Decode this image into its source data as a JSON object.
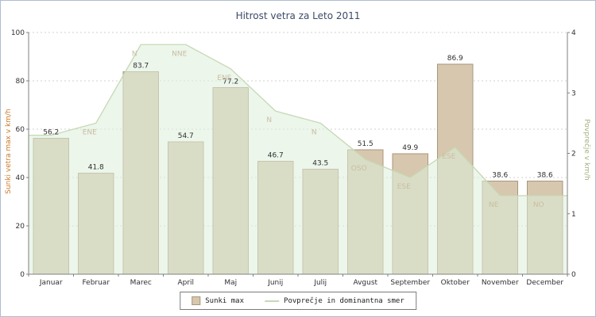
{
  "window": {
    "title": "Hitrost vetra za Leto 2011"
  },
  "chart_data": {
    "type": "bar",
    "title": "Hitrost vetra za Leto 2011",
    "categories": [
      "Januar",
      "Februar",
      "Marec",
      "April",
      "Maj",
      "Junij",
      "Julij",
      "Avgust",
      "September",
      "Oktober",
      "November",
      "December"
    ],
    "series": [
      {
        "name": "Sunki max",
        "type": "bar",
        "axis": "left",
        "values": [
          56.2,
          41.8,
          83.7,
          54.7,
          77.2,
          46.7,
          43.5,
          51.5,
          49.9,
          86.9,
          38.6,
          38.6
        ]
      },
      {
        "name": "Povprečje in dominantna smer",
        "type": "area",
        "axis": "right",
        "values": [
          2.3,
          2.5,
          3.8,
          3.8,
          3.4,
          2.7,
          2.5,
          1.9,
          1.6,
          2.1,
          1.3,
          1.3
        ],
        "point_labels": [
          "",
          "ENE",
          "N",
          "NNE",
          "ENE",
          "N",
          "N",
          "OSO",
          "ESE",
          "ESE",
          "NE",
          "NO"
        ]
      }
    ],
    "left_axis": {
      "label": "Sunki vetra max v km/h",
      "min": 0,
      "max": 100,
      "ticks": [
        0,
        20,
        40,
        60,
        80,
        100
      ]
    },
    "right_axis": {
      "label": "Povprečje v km/h",
      "min": 0,
      "max": 4,
      "ticks": [
        0,
        1,
        2,
        3,
        4
      ]
    },
    "legend": [
      "Sunki max",
      "Povprečje in dominantna smer"
    ],
    "legend_position": "bottom",
    "grid": "horizontal-dashed",
    "colors": {
      "bar_fill": "#d7c7ae",
      "bar_border": "#ab967c",
      "area_fill": "#ddeeda",
      "area_line": "#c6d8b4",
      "direction_label": "#c9bda1",
      "value_label": "#303030",
      "title": "#3c4a68",
      "left_axis_title": "#cc7a29",
      "right_axis_title": "#a2b07c",
      "axis": "#808080",
      "grid": "#d0d0d0",
      "tick_text": "#303030",
      "frame_border": "#aebcd0"
    }
  }
}
